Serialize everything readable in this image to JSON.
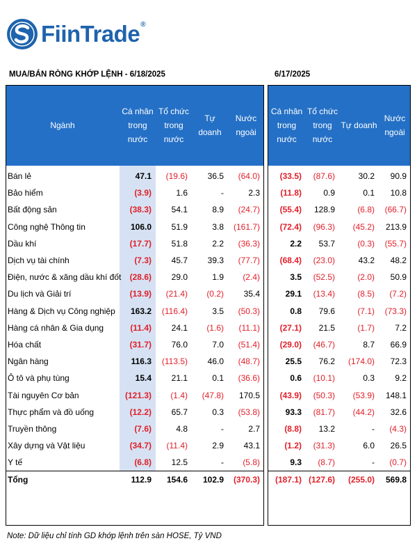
{
  "brand": {
    "name": "FiinTrade",
    "reg_mark": "®"
  },
  "left_title": "MUA/BÁN RÒNG KHỚP LỆNH - 6/18/2025",
  "right_title": "6/17/2025",
  "headers": {
    "sector": "Ngành",
    "individual": "Cá nhân trong nước",
    "institution": "Tổ chức trong nước",
    "proprietary": "Tự doanh",
    "foreign": "Nước ngoài"
  },
  "rows": [
    {
      "sector": "Bán lẻ",
      "d1": [
        "47.1",
        "(19.6)",
        "36.5",
        "(64.0)"
      ],
      "d2": [
        "(33.5)",
        "(87.6)",
        "30.2",
        "90.9"
      ]
    },
    {
      "sector": "Bảo hiểm",
      "d1": [
        "(3.9)",
        "1.6",
        "-",
        "2.3"
      ],
      "d2": [
        "(11.8)",
        "0.9",
        "0.1",
        "10.8"
      ]
    },
    {
      "sector": "Bất động sản",
      "d1": [
        "(38.3)",
        "54.1",
        "8.9",
        "(24.7)"
      ],
      "d2": [
        "(55.4)",
        "128.9",
        "(6.8)",
        "(66.7)"
      ]
    },
    {
      "sector": "Công nghệ Thông tin",
      "d1": [
        "106.0",
        "51.9",
        "3.8",
        "(161.7)"
      ],
      "d2": [
        "(72.4)",
        "(96.3)",
        "(45.2)",
        "213.9"
      ]
    },
    {
      "sector": "Dầu khí",
      "d1": [
        "(17.7)",
        "51.8",
        "2.2",
        "(36.3)"
      ],
      "d2": [
        "2.2",
        "53.7",
        "(0.3)",
        "(55.7)"
      ]
    },
    {
      "sector": "Dịch vụ tài chính",
      "d1": [
        "(7.3)",
        "45.7",
        "39.3",
        "(77.7)"
      ],
      "d2": [
        "(68.4)",
        "(23.0)",
        "43.2",
        "48.2"
      ]
    },
    {
      "sector": "Điện, nước & xăng dầu khí đốt",
      "d1": [
        "(28.6)",
        "29.0",
        "1.9",
        "(2.4)"
      ],
      "d2": [
        "3.5",
        "(52.5)",
        "(2.0)",
        "50.9"
      ]
    },
    {
      "sector": "Du lịch và Giải trí",
      "d1": [
        "(13.9)",
        "(21.4)",
        "(0.2)",
        "35.4"
      ],
      "d2": [
        "29.1",
        "(13.4)",
        "(8.5)",
        "(7.2)"
      ]
    },
    {
      "sector": "Hàng & Dịch vụ Công nghiệp",
      "d1": [
        "163.2",
        "(116.4)",
        "3.5",
        "(50.3)"
      ],
      "d2": [
        "0.8",
        "79.6",
        "(7.1)",
        "(73.3)"
      ]
    },
    {
      "sector": "Hàng cá nhân & Gia dụng",
      "d1": [
        "(11.4)",
        "24.1",
        "(1.6)",
        "(11.1)"
      ],
      "d2": [
        "(27.1)",
        "21.5",
        "(1.7)",
        "7.2"
      ]
    },
    {
      "sector": "Hóa chất",
      "d1": [
        "(31.7)",
        "76.0",
        "7.0",
        "(51.4)"
      ],
      "d2": [
        "(29.0)",
        "(46.7)",
        "8.7",
        "66.9"
      ]
    },
    {
      "sector": "Ngân hàng",
      "d1": [
        "116.3",
        "(113.5)",
        "46.0",
        "(48.7)"
      ],
      "d2": [
        "25.5",
        "76.2",
        "(174.0)",
        "72.3"
      ]
    },
    {
      "sector": "Ô tô và phụ tùng",
      "d1": [
        "15.4",
        "21.1",
        "0.1",
        "(36.6)"
      ],
      "d2": [
        "0.6",
        "(10.1)",
        "0.3",
        "9.2"
      ]
    },
    {
      "sector": "Tài nguyên Cơ bản",
      "d1": [
        "(121.3)",
        "(1.4)",
        "(47.8)",
        "170.5"
      ],
      "d2": [
        "(43.9)",
        "(50.3)",
        "(53.9)",
        "148.1"
      ]
    },
    {
      "sector": "Thực phẩm và đồ uống",
      "d1": [
        "(12.2)",
        "65.7",
        "0.3",
        "(53.8)"
      ],
      "d2": [
        "93.3",
        "(81.7)",
        "(44.2)",
        "32.6"
      ]
    },
    {
      "sector": "Truyền thông",
      "d1": [
        "(7.6)",
        "4.8",
        "-",
        "2.7"
      ],
      "d2": [
        "(8.8)",
        "13.2",
        "-",
        "(4.3)"
      ]
    },
    {
      "sector": "Xây dựng và Vật liệu",
      "d1": [
        "(34.7)",
        "(11.4)",
        "2.9",
        "43.1"
      ],
      "d2": [
        "(1.2)",
        "(31.3)",
        "6.0",
        "26.5"
      ]
    },
    {
      "sector": "Y tế",
      "d1": [
        "(6.8)",
        "12.5",
        "-",
        "(5.8)"
      ],
      "d2": [
        "9.3",
        "(8.7)",
        "-",
        "(0.7)"
      ]
    }
  ],
  "total": {
    "label": "Tổng",
    "d1": [
      "112.9",
      "154.6",
      "102.9",
      "(370.3)"
    ],
    "d2": [
      "(187.1)",
      "(127.6)",
      "(255.0)",
      "569.8"
    ]
  },
  "note": "Note: Dữ liệu chỉ tính GD khớp lệnh trên sàn HOSE, Tỷ VND",
  "colors": {
    "header_bg": "#2470c6",
    "negative": "#e0202a",
    "highlight": "#d6e2f3",
    "brand": "#1e63ad"
  }
}
